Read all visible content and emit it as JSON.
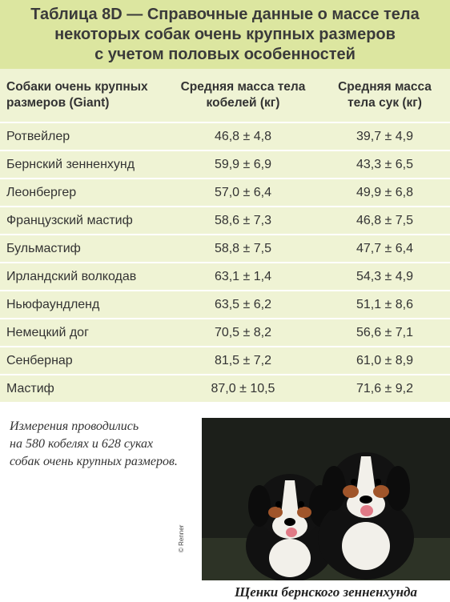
{
  "title": [
    "Таблица 8D — Справочные данные о массе тела",
    "некоторых собак очень крупных размеров",
    "с учетом половых особенностей"
  ],
  "table": {
    "header": [
      "Собаки очень крупных размеров (Giant)",
      "Средняя масса тела кобелей (кг)",
      "Средняя масса тела сук (кг)"
    ],
    "rows": [
      [
        "Ротвейлер",
        "46,8 ± 4,8",
        "39,7 ± 4,9"
      ],
      [
        "Бернский зенненхунд",
        "59,9 ± 6,9",
        "43,3 ± 6,5"
      ],
      [
        "Леонбергер",
        "57,0 ± 6,4",
        "49,9 ± 6,8"
      ],
      [
        "Французский мастиф",
        "58,6 ± 7,3",
        "46,8 ± 7,5"
      ],
      [
        "Бульмастиф",
        "58,8 ± 7,5",
        "47,7 ± 6,4"
      ],
      [
        "Ирландский волкодав",
        "63,1 ± 1,4",
        "54,3 ± 4,9"
      ],
      [
        "Ньюфаундленд",
        "63,5 ± 6,2",
        "51,1 ± 8,6"
      ],
      [
        "Немецкий дог",
        "70,5 ± 8,2",
        "56,6 ± 7,1"
      ],
      [
        "Сенбернар",
        "81,5 ± 7,2",
        "61,0 ± 8,9"
      ],
      [
        "Мастиф",
        "87,0 ± 10,5",
        "71,6 ± 9,2"
      ]
    ]
  },
  "note": [
    "Измерения проводились",
    "на 580 кобелях  и 628 суках",
    "собак очень крупных размеров."
  ],
  "photo": {
    "credit": "© Renner",
    "caption": "Щенки бернского зенненхунда"
  }
}
